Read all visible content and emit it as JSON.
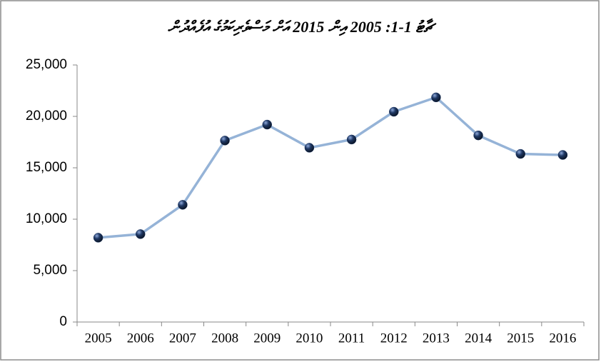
{
  "chart_data": {
    "type": "line",
    "title": "ޗާޓު 1-1:  2005 އިން 2015 އަށް މަސްވެރިކަމުގެ އުފެއްދުން",
    "categories": [
      "2005",
      "2006",
      "2007",
      "2008",
      "2009",
      "2010",
      "2011",
      "2012",
      "2013",
      "2014",
      "2015",
      "2016"
    ],
    "series": [
      {
        "name": "",
        "color": "#95b3d7",
        "marker_color": "#1f3864",
        "values": [
          8200,
          8550,
          11400,
          17650,
          19200,
          16950,
          17750,
          20450,
          21850,
          18150,
          16350,
          16250
        ]
      }
    ],
    "ylim": [
      0,
      25000
    ],
    "yticks": [
      0,
      {
        "value": 5000,
        "label": "5,000"
      },
      {
        "value": 10000,
        "label": "10,000"
      },
      {
        "value": 15000,
        "label": "15,000"
      },
      {
        "value": 20000,
        "label": "20,000"
      },
      {
        "value": 25000,
        "label": "25,000"
      }
    ],
    "grid": false
  }
}
